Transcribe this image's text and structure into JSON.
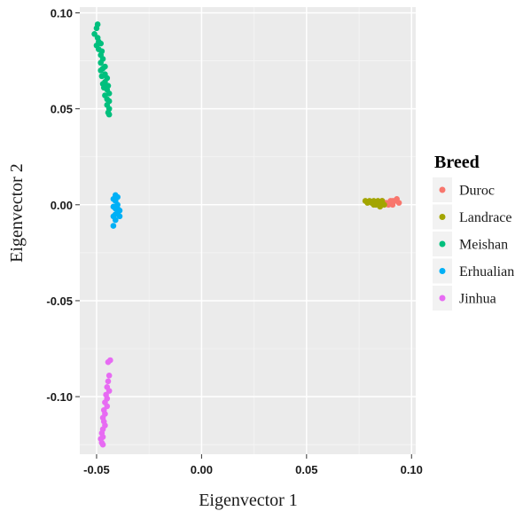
{
  "chart_data": {
    "type": "scatter",
    "xlabel": "Eigenvector 1",
    "ylabel": "Eigenvector 2",
    "xlim": [
      -0.058,
      0.102
    ],
    "ylim": [
      -0.13,
      0.103
    ],
    "x_ticks": [
      -0.05,
      0.0,
      0.05,
      0.1
    ],
    "x_tick_labels": [
      "-0.05",
      "0.00",
      "0.05",
      "0.10"
    ],
    "y_ticks": [
      -0.1,
      -0.05,
      0.0,
      0.05,
      0.1
    ],
    "y_tick_labels": [
      "-0.10",
      "-0.05",
      "0.00",
      "0.05",
      "0.10"
    ],
    "grid": true,
    "legend": {
      "title": "Breed",
      "position": "right"
    },
    "series": [
      {
        "name": "Duroc",
        "color": "#F8766D",
        "points": [
          [
            0.088,
            0.001
          ],
          [
            0.09,
            0.002
          ],
          [
            0.091,
            0.0
          ],
          [
            0.092,
            0.002
          ],
          [
            0.093,
            0.003
          ],
          [
            0.094,
            0.001
          ],
          [
            0.089,
            0.0
          ],
          [
            0.087,
            0.001
          ],
          [
            0.086,
            0.002
          ],
          [
            0.091,
            0.002
          ]
        ]
      },
      {
        "name": "Landrace",
        "color": "#A3A500",
        "points": [
          [
            0.078,
            0.002
          ],
          [
            0.079,
            0.001
          ],
          [
            0.08,
            0.002
          ],
          [
            0.081,
            0.001
          ],
          [
            0.082,
            0.002
          ],
          [
            0.083,
            0.0
          ],
          [
            0.083,
            0.001
          ],
          [
            0.084,
            0.002
          ],
          [
            0.085,
            -0.001
          ],
          [
            0.085,
            0.001
          ],
          [
            0.086,
            0.002
          ],
          [
            0.087,
            0.0
          ],
          [
            0.082,
            0.0
          ],
          [
            0.084,
            0.001
          ]
        ]
      },
      {
        "name": "Meishan",
        "color": "#00BF7D",
        "points": [
          [
            -0.0495,
            0.094
          ],
          [
            -0.05,
            0.092
          ],
          [
            -0.051,
            0.089
          ],
          [
            -0.0495,
            0.087
          ],
          [
            -0.049,
            0.085
          ],
          [
            -0.048,
            0.084
          ],
          [
            -0.05,
            0.083
          ],
          [
            -0.049,
            0.081
          ],
          [
            -0.0475,
            0.08
          ],
          [
            -0.048,
            0.078
          ],
          [
            -0.047,
            0.076
          ],
          [
            -0.048,
            0.074
          ],
          [
            -0.046,
            0.072
          ],
          [
            -0.047,
            0.071
          ],
          [
            -0.048,
            0.07
          ],
          [
            -0.046,
            0.068
          ],
          [
            -0.0475,
            0.067
          ],
          [
            -0.045,
            0.066
          ],
          [
            -0.046,
            0.064
          ],
          [
            -0.047,
            0.063
          ],
          [
            -0.0445,
            0.062
          ],
          [
            -0.0465,
            0.061
          ],
          [
            -0.045,
            0.06
          ],
          [
            -0.044,
            0.058
          ],
          [
            -0.046,
            0.057
          ],
          [
            -0.045,
            0.055
          ],
          [
            -0.044,
            0.054
          ],
          [
            -0.045,
            0.052
          ],
          [
            -0.044,
            0.05
          ],
          [
            -0.0445,
            0.048
          ],
          [
            -0.044,
            0.047
          ]
        ]
      },
      {
        "name": "Erhualian",
        "color": "#00B0F6",
        "points": [
          [
            -0.041,
            0.005
          ],
          [
            -0.04,
            0.004
          ],
          [
            -0.042,
            0.003
          ],
          [
            -0.041,
            0.002
          ],
          [
            -0.04,
            0.0
          ],
          [
            -0.042,
            -0.001
          ],
          [
            -0.041,
            -0.002
          ],
          [
            -0.039,
            -0.003
          ],
          [
            -0.04,
            -0.004
          ],
          [
            -0.041,
            -0.005
          ],
          [
            -0.042,
            -0.006
          ],
          [
            -0.041,
            -0.008
          ],
          [
            -0.042,
            -0.011
          ],
          [
            -0.039,
            -0.006
          ],
          [
            -0.04,
            -0.002
          ]
        ]
      },
      {
        "name": "Jinhua",
        "color": "#E76BF3",
        "points": [
          [
            -0.0435,
            -0.081
          ],
          [
            -0.0445,
            -0.082
          ],
          [
            -0.044,
            -0.089
          ],
          [
            -0.0445,
            -0.092
          ],
          [
            -0.045,
            -0.095
          ],
          [
            -0.044,
            -0.097
          ],
          [
            -0.0455,
            -0.099
          ],
          [
            -0.045,
            -0.101
          ],
          [
            -0.046,
            -0.103
          ],
          [
            -0.045,
            -0.105
          ],
          [
            -0.0465,
            -0.107
          ],
          [
            -0.046,
            -0.109
          ],
          [
            -0.047,
            -0.111
          ],
          [
            -0.0465,
            -0.113
          ],
          [
            -0.046,
            -0.115
          ],
          [
            -0.047,
            -0.117
          ],
          [
            -0.0475,
            -0.119
          ],
          [
            -0.047,
            -0.121
          ],
          [
            -0.048,
            -0.122
          ],
          [
            -0.0475,
            -0.124
          ],
          [
            -0.047,
            -0.125
          ]
        ]
      }
    ]
  }
}
